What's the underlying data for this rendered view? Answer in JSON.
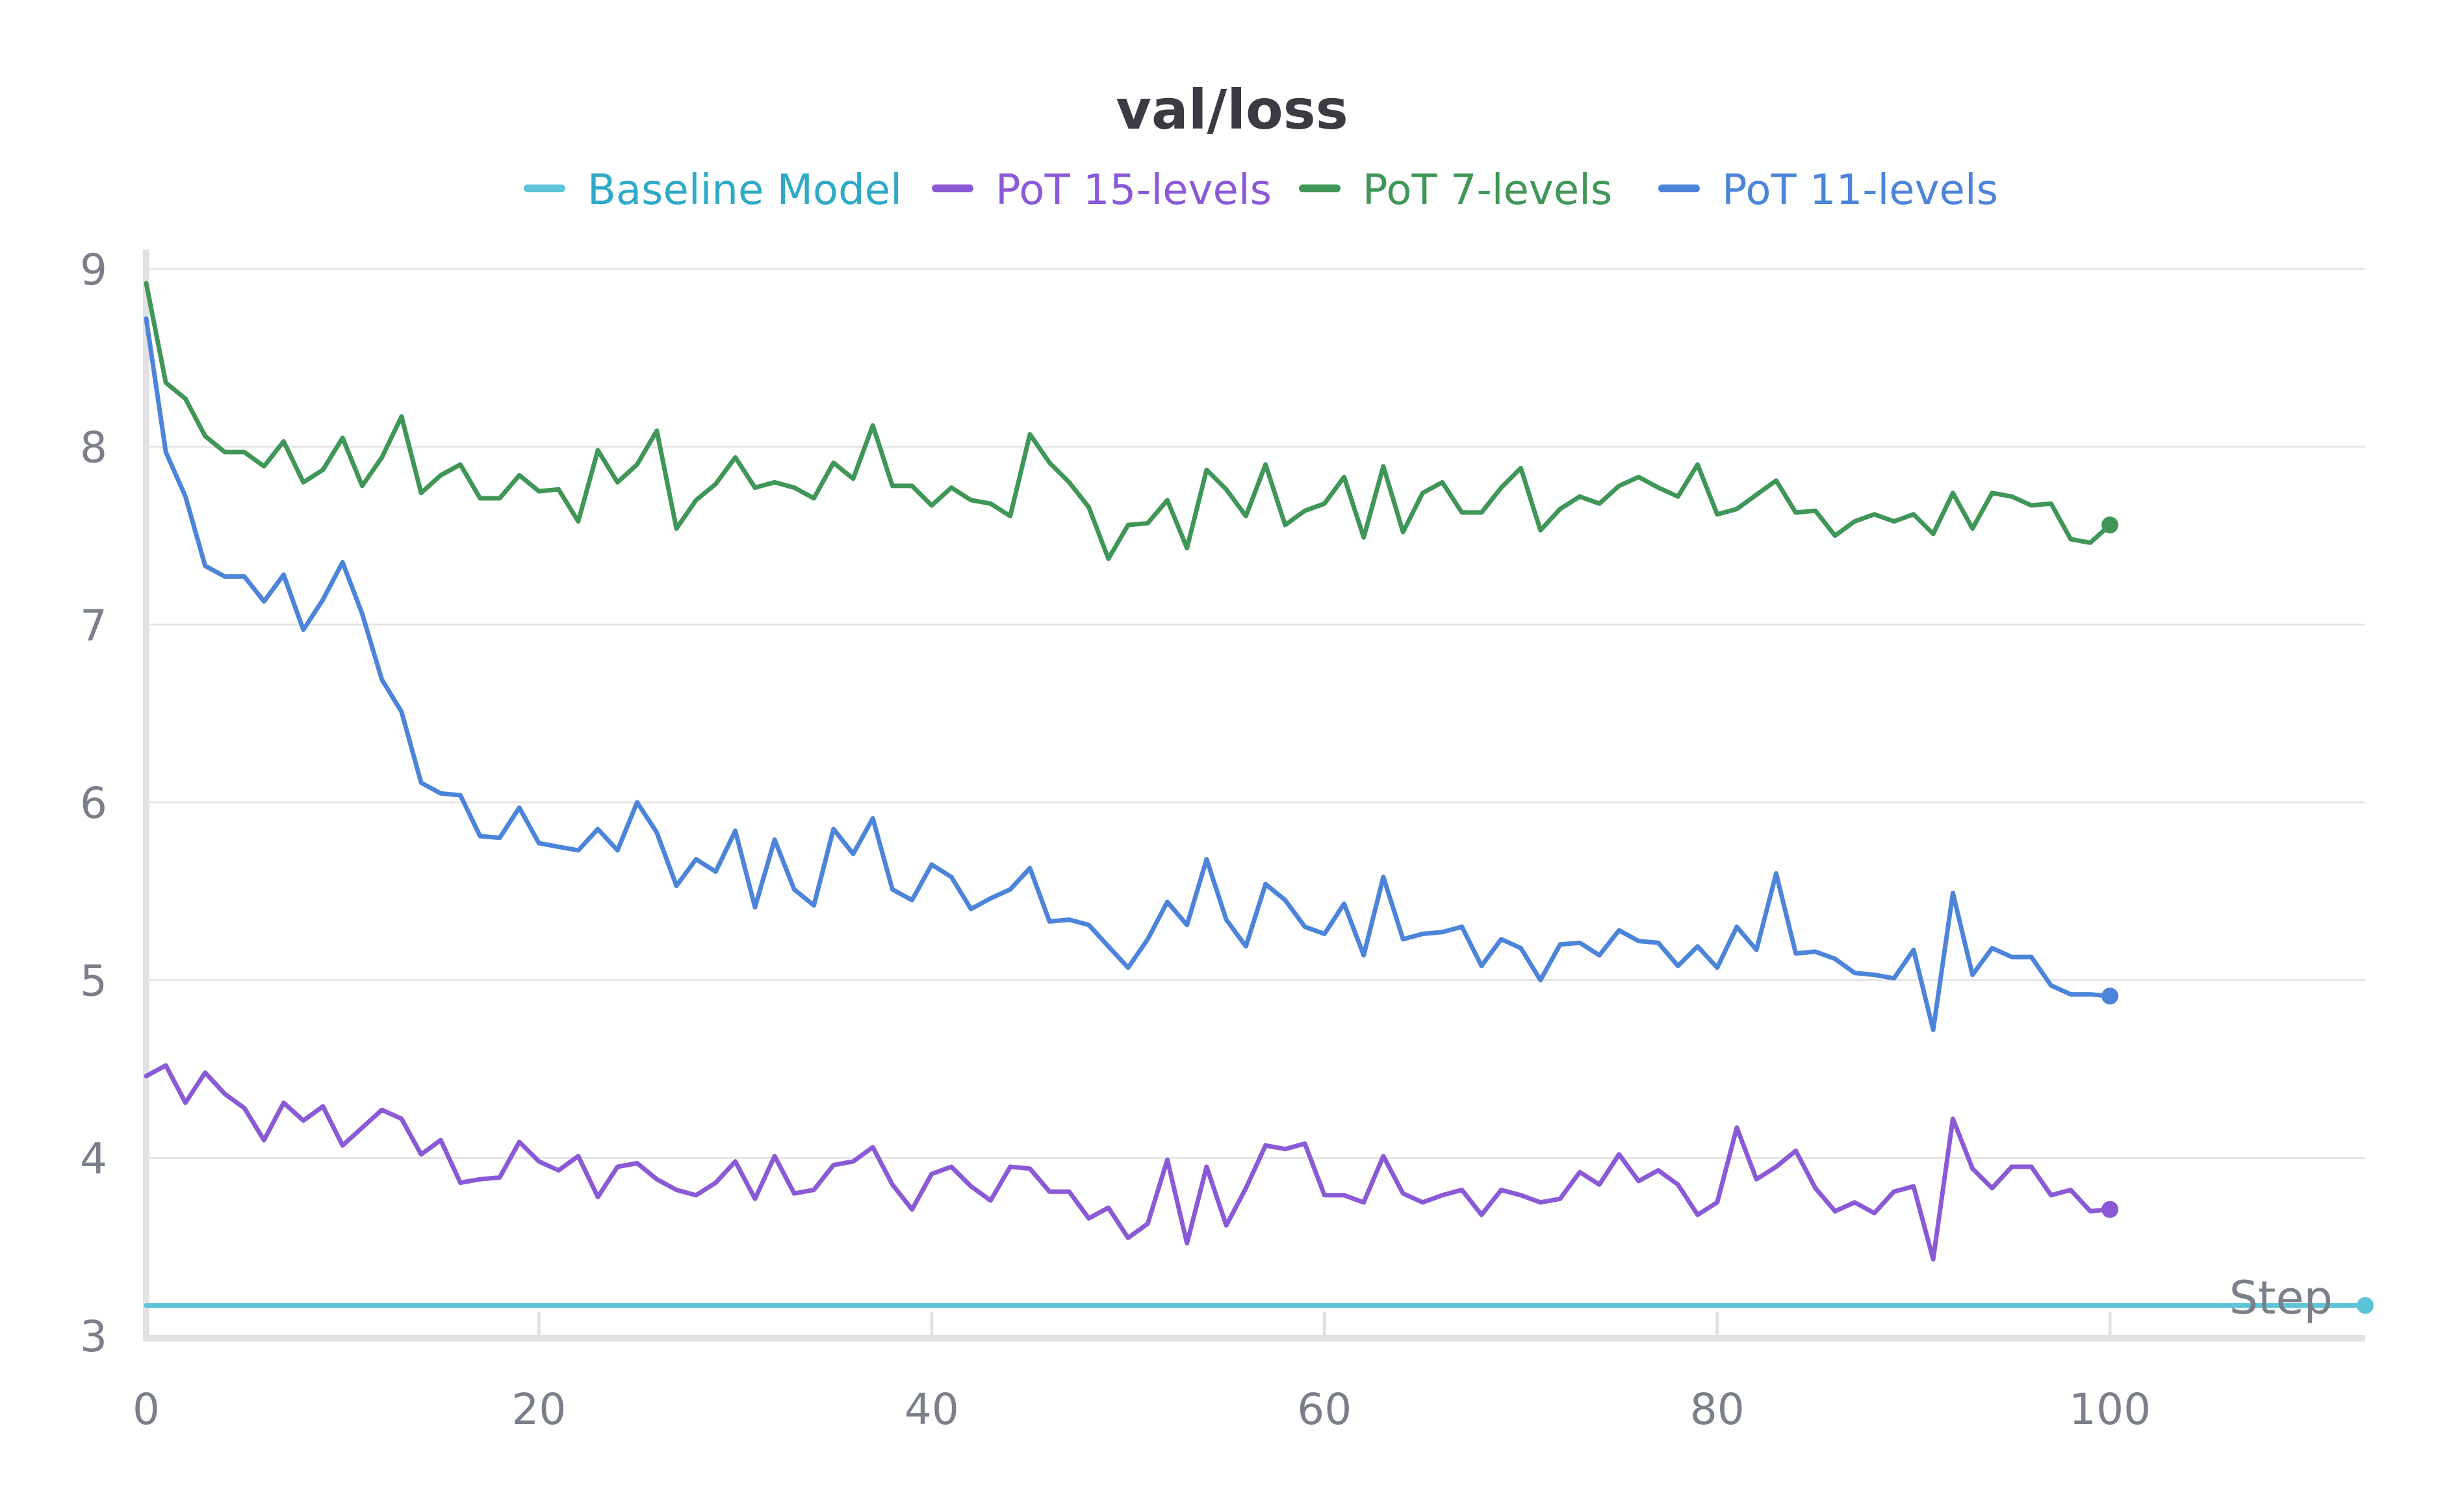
{
  "chart_data": {
    "type": "line",
    "title": "val/loss",
    "xlabel": "Step",
    "ylabel": "",
    "xlim": [
      0,
      113
    ],
    "ylim": [
      3,
      9
    ],
    "xticks": [
      0,
      20,
      40,
      60,
      80,
      100
    ],
    "yticks": [
      3,
      4,
      5,
      6,
      7,
      8,
      9
    ],
    "grid": true,
    "legend_position": "top",
    "series": [
      {
        "name": "Baseline Model",
        "color": "#5bc4d9",
        "x": [
          0,
          113
        ],
        "values": [
          3.17,
          3.17
        ]
      },
      {
        "name": "PoT 15-levels",
        "color": "#8a5ad6",
        "values": [
          4.46,
          4.52,
          4.31,
          4.48,
          4.36,
          4.28,
          4.1,
          4.31,
          4.21,
          4.29,
          4.07,
          4.17,
          4.27,
          4.22,
          4.02,
          4.1,
          3.86,
          3.88,
          3.89,
          4.09,
          3.98,
          3.93,
          4.01,
          3.78,
          3.95,
          3.97,
          3.88,
          3.82,
          3.79,
          3.86,
          3.98,
          3.77,
          4.01,
          3.8,
          3.82,
          3.96,
          3.98,
          4.06,
          3.85,
          3.71,
          3.91,
          3.95,
          3.84,
          3.76,
          3.95,
          3.94,
          3.81,
          3.81,
          3.66,
          3.72,
          3.55,
          3.63,
          3.99,
          3.52,
          3.95,
          3.62,
          3.83,
          4.07,
          4.05,
          4.08,
          3.79,
          3.79,
          3.75,
          4.01,
          3.8,
          3.75,
          3.79,
          3.82,
          3.68,
          3.82,
          3.79,
          3.75,
          3.77,
          3.92,
          3.85,
          4.02,
          3.87,
          3.93,
          3.85,
          3.68,
          3.75,
          4.17,
          3.88,
          3.95,
          4.04,
          3.83,
          3.7,
          3.75,
          3.69,
          3.81,
          3.84,
          3.43,
          4.22,
          3.94,
          3.83,
          3.95,
          3.95,
          3.79,
          3.82,
          3.7,
          3.71
        ]
      },
      {
        "name": "PoT 7-levels",
        "color": "#3f9657",
        "values": [
          8.92,
          8.36,
          8.27,
          8.06,
          7.97,
          7.97,
          7.89,
          8.03,
          7.8,
          7.87,
          8.05,
          7.78,
          7.94,
          8.17,
          7.74,
          7.84,
          7.9,
          7.71,
          7.71,
          7.84,
          7.75,
          7.76,
          7.58,
          7.98,
          7.8,
          7.9,
          8.09,
          7.54,
          7.7,
          7.79,
          7.94,
          7.77,
          7.8,
          7.77,
          7.71,
          7.91,
          7.82,
          8.12,
          7.78,
          7.78,
          7.67,
          7.77,
          7.7,
          7.68,
          7.61,
          8.07,
          7.91,
          7.8,
          7.66,
          7.37,
          7.56,
          7.57,
          7.7,
          7.43,
          7.87,
          7.76,
          7.61,
          7.9,
          7.56,
          7.64,
          7.68,
          7.83,
          7.49,
          7.89,
          7.52,
          7.74,
          7.8,
          7.63,
          7.63,
          7.77,
          7.88,
          7.53,
          7.65,
          7.72,
          7.68,
          7.78,
          7.83,
          7.77,
          7.72,
          7.9,
          7.62,
          7.65,
          7.73,
          7.81,
          7.63,
          7.64,
          7.5,
          7.58,
          7.62,
          7.58,
          7.62,
          7.51,
          7.74,
          7.54,
          7.74,
          7.72,
          7.67,
          7.68,
          7.48,
          7.46,
          7.56
        ]
      },
      {
        "name": "PoT 11-levels",
        "color": "#4c84d9",
        "values": [
          8.72,
          7.97,
          7.72,
          7.33,
          7.27,
          7.27,
          7.13,
          7.28,
          6.97,
          7.14,
          7.35,
          7.06,
          6.69,
          6.51,
          6.11,
          6.05,
          6.04,
          5.81,
          5.8,
          5.97,
          5.77,
          5.75,
          5.73,
          5.85,
          5.73,
          6.0,
          5.83,
          5.53,
          5.68,
          5.61,
          5.84,
          5.41,
          5.79,
          5.51,
          5.42,
          5.85,
          5.71,
          5.91,
          5.51,
          5.45,
          5.65,
          5.58,
          5.4,
          5.46,
          5.51,
          5.63,
          5.33,
          5.34,
          5.31,
          5.19,
          5.07,
          5.23,
          5.44,
          5.31,
          5.68,
          5.34,
          5.19,
          5.54,
          5.45,
          5.3,
          5.26,
          5.43,
          5.14,
          5.58,
          5.23,
          5.26,
          5.27,
          5.3,
          5.08,
          5.23,
          5.18,
          5.0,
          5.2,
          5.21,
          5.14,
          5.28,
          5.22,
          5.21,
          5.08,
          5.19,
          5.07,
          5.3,
          5.17,
          5.6,
          5.15,
          5.16,
          5.12,
          5.04,
          5.03,
          5.01,
          5.17,
          4.72,
          5.49,
          5.03,
          5.18,
          5.13,
          5.13,
          4.97,
          4.92,
          4.92,
          4.91
        ]
      }
    ]
  }
}
